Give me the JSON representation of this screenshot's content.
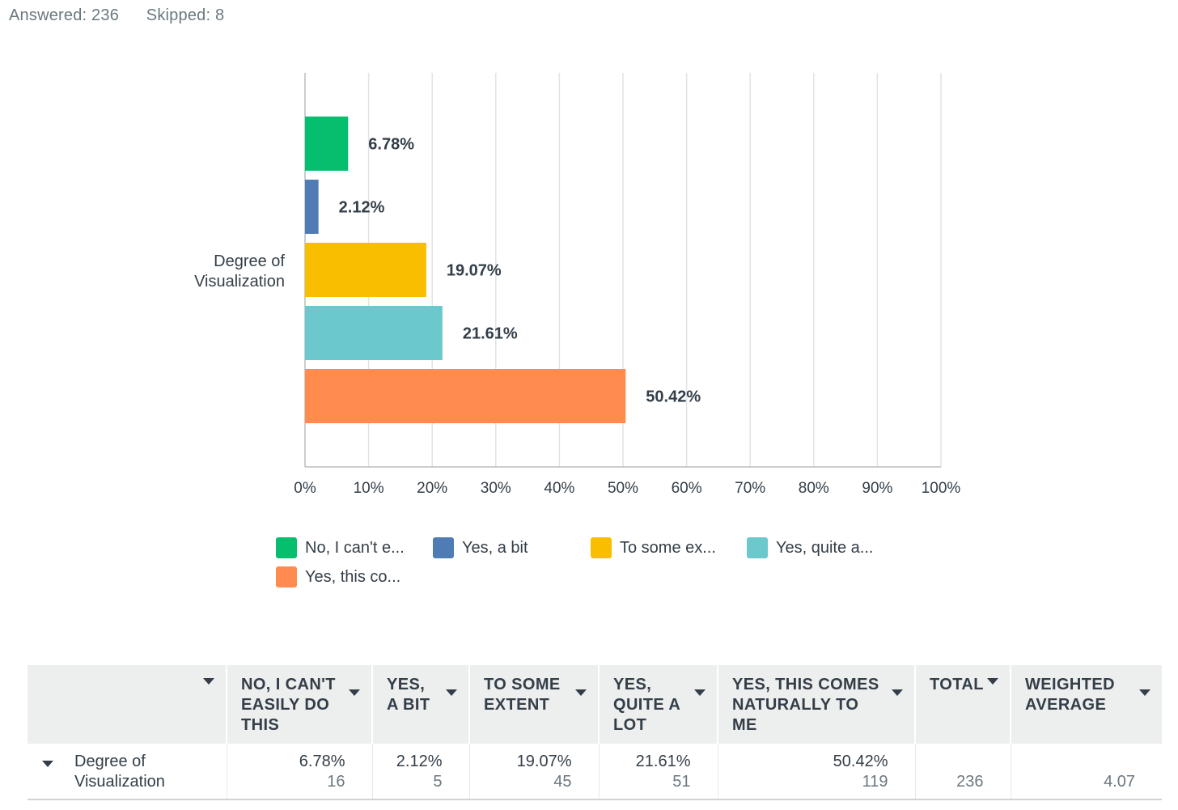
{
  "summary": {
    "answered": "Answered: 236",
    "skipped": "Skipped: 8"
  },
  "colors": {
    "no_cant": "#05bf6f",
    "yes_bit": "#507cb6",
    "some_extent": "#f9be00",
    "quite_lot": "#6bc8cd",
    "naturally": "#ff8b4f",
    "grid": "#e1e3e4",
    "axis": "#b9bec1"
  },
  "chart_data": {
    "type": "bar",
    "orientation": "horizontal",
    "category": "Degree of\nVisualization",
    "xlim": [
      0,
      100
    ],
    "x_ticks": [
      "0%",
      "10%",
      "20%",
      "30%",
      "40%",
      "50%",
      "60%",
      "70%",
      "80%",
      "90%",
      "100%"
    ],
    "grid": true,
    "series": [
      {
        "name": "No, I can't e...",
        "value": 6.78,
        "label": "6.78%",
        "color": "#05bf6f"
      },
      {
        "name": "Yes, a bit",
        "value": 2.12,
        "label": "2.12%",
        "color": "#507cb6"
      },
      {
        "name": "To some ex...",
        "value": 19.07,
        "label": "19.07%",
        "color": "#f9be00"
      },
      {
        "name": "Yes, quite a...",
        "value": 21.61,
        "label": "21.61%",
        "color": "#6bc8cd"
      },
      {
        "name": "Yes, this co...",
        "value": 50.42,
        "label": "50.42%",
        "color": "#ff8b4f"
      }
    ]
  },
  "table": {
    "headers": [
      "",
      "NO, I CAN'T EASILY DO THIS",
      "YES, A BIT",
      "TO SOME EXTENT",
      "YES, QUITE A LOT",
      "YES, THIS COMES NATURALLY TO ME",
      "TOTAL",
      "WEIGHTED AVERAGE"
    ],
    "row": {
      "label": "Degree of Visualization",
      "cells": [
        {
          "pct": "6.78%",
          "count": "16"
        },
        {
          "pct": "2.12%",
          "count": "5"
        },
        {
          "pct": "19.07%",
          "count": "45"
        },
        {
          "pct": "21.61%",
          "count": "51"
        },
        {
          "pct": "50.42%",
          "count": "119"
        }
      ],
      "total": "236",
      "weighted_average": "4.07"
    }
  }
}
